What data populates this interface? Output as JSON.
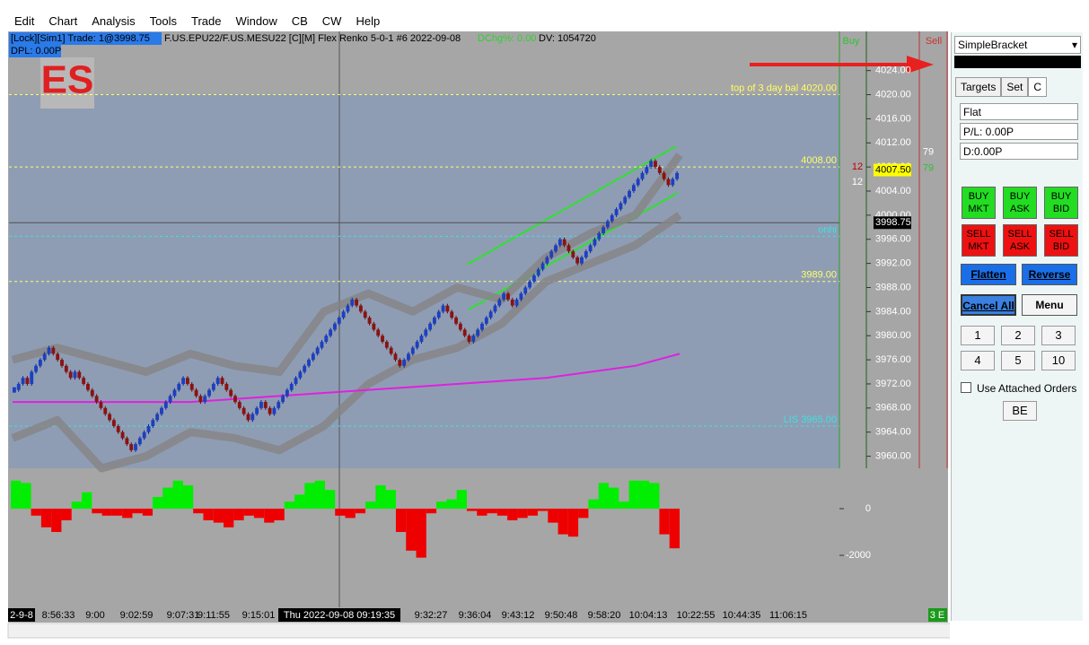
{
  "menu": [
    "Edit",
    "Chart",
    "Analysis",
    "Tools",
    "Trade",
    "Window",
    "CB",
    "CW",
    "Help"
  ],
  "chart": {
    "symbol_label": "ES",
    "info": {
      "account": "[Lock][Sim1]  Trade: 1@3998.75",
      "instrument": "F.US.EPU22/F.US.MESU22 [C][M]  Flex Renko 5-0-1  #6 2022-09-08",
      "change": "DChg%: 0.00",
      "volume": "DV: 1054720",
      "dpl": "DPL: 0.00P"
    },
    "buy_label": "Buy",
    "sell_label": "Sell",
    "ylim": [
      3958,
      4030.5
    ],
    "yticks": [
      {
        "value": 4024,
        "label": "4024.00"
      },
      {
        "value": 4020,
        "label": "4020.00"
      },
      {
        "value": 4016,
        "label": "4016.00"
      },
      {
        "value": 4012,
        "label": "4012.00"
      },
      {
        "value": 4008,
        "label": "4008.00"
      },
      {
        "value": 4004,
        "label": "4004.00"
      },
      {
        "value": 4000,
        "label": "4000.00"
      },
      {
        "value": 3996,
        "label": "3996.00"
      },
      {
        "value": 3992,
        "label": "3992.00"
      },
      {
        "value": 3988,
        "label": "3988.00"
      },
      {
        "value": 3984,
        "label": "3984.00"
      },
      {
        "value": 3980,
        "label": "3980.00"
      },
      {
        "value": 3976,
        "label": "3976.00"
      },
      {
        "value": 3972,
        "label": "3972.00"
      },
      {
        "value": 3968,
        "label": "3968.00"
      },
      {
        "value": 3964,
        "label": "3964.00"
      },
      {
        "value": 3960,
        "label": "3960.00"
      }
    ],
    "last_price": {
      "value": 4007.5,
      "label": "4007.50"
    },
    "trade_price": {
      "value": 3998.75,
      "label": "3998.75"
    },
    "levels": [
      {
        "label": "top of 3 day bal  4020.00",
        "value": 4020,
        "color": "#ffff66"
      },
      {
        "label": "4008.00",
        "value": 4008,
        "color": "#ffff66"
      },
      {
        "label": "onhi",
        "value": 3996.5,
        "color": "#40e0e0"
      },
      {
        "label": "3989.00",
        "value": 3989,
        "color": "#ffff66"
      },
      {
        "label": "LIS  3965.00",
        "value": 3965,
        "color": "#40e0e0"
      }
    ],
    "bricks": [
      3971,
      3972,
      3973,
      3972,
      3974,
      3975,
      3976,
      3977,
      3978,
      3977,
      3976,
      3975,
      3974,
      3973,
      3974,
      3973,
      3972,
      3971,
      3970,
      3969,
      3968,
      3967,
      3966,
      3965,
      3964,
      3963,
      3962,
      3961,
      3962,
      3963,
      3964,
      3965,
      3966,
      3967,
      3968,
      3969,
      3970,
      3971,
      3972,
      3973,
      3972,
      3971,
      3970,
      3969,
      3970,
      3971,
      3972,
      3973,
      3972,
      3971,
      3970,
      3969,
      3968,
      3967,
      3966,
      3967,
      3968,
      3969,
      3968,
      3967,
      3968,
      3969,
      3970,
      3971,
      3972,
      3973,
      3974,
      3975,
      3976,
      3977,
      3978,
      3979,
      3980,
      3981,
      3982,
      3983,
      3984,
      3985,
      3986,
      3985,
      3984,
      3983,
      3982,
      3981,
      3980,
      3979,
      3978,
      3977,
      3976,
      3975,
      3976,
      3977,
      3978,
      3979,
      3980,
      3981,
      3982,
      3983,
      3984,
      3985,
      3984,
      3983,
      3982,
      3981,
      3980,
      3979,
      3980,
      3981,
      3982,
      3983,
      3984,
      3985,
      3986,
      3987,
      3986,
      3985,
      3986,
      3987,
      3988,
      3989,
      3990,
      3991,
      3992,
      3993,
      3994,
      3995,
      3996,
      3995,
      3994,
      3993,
      3992,
      3993,
      3994,
      3995,
      3996,
      3997,
      3998,
      3999,
      4000,
      4001,
      4002,
      4003,
      4004,
      4005,
      4006,
      4007,
      4008,
      4009,
      4008,
      4007,
      4006,
      4005,
      4006,
      4007
    ],
    "bands": {
      "upper": [
        3976,
        3978,
        3976,
        3974,
        3977,
        3975,
        3974,
        3984,
        3987,
        3984,
        3988,
        3986,
        3993,
        3997,
        4000,
        4010
      ],
      "lower": [
        3963,
        3966,
        3958,
        3960,
        3964,
        3963,
        3961,
        3965,
        3972,
        3976,
        3978,
        3982,
        3989,
        3992,
        3995,
        4000
      ],
      "ma": [
        3969,
        3969,
        3969,
        3969,
        3969,
        3969.5,
        3970,
        3970.5,
        3971,
        3971.5,
        3972,
        3972.5,
        3973,
        3974,
        3975,
        3977
      ]
    },
    "bid_counts": [
      {
        "price": 4008,
        "count": 12,
        "color": "#c00000"
      },
      {
        "price": 4005.5,
        "count": 12,
        "color": "#ffffff"
      }
    ],
    "ask_counts": [
      {
        "price": 4010.5,
        "count": 79,
        "color": "#ffffff"
      },
      {
        "price": 4007.8,
        "count": 79,
        "color": "#30c030"
      }
    ]
  },
  "histogram": {
    "ylim": [
      -3960,
      1615
    ],
    "yticks": [
      0,
      -2000
    ],
    "values": [
      1200,
      1100,
      -300,
      -800,
      -1000,
      -500,
      300,
      700,
      -200,
      -300,
      -300,
      -400,
      -200,
      -300,
      500,
      900,
      1200,
      1000,
      -200,
      -500,
      -600,
      -800,
      -500,
      -300,
      -400,
      -600,
      -500,
      300,
      600,
      1100,
      1200,
      800,
      -300,
      -400,
      -200,
      300,
      1000,
      800,
      -1000,
      -1800,
      -2100,
      -200,
      300,
      400,
      800,
      -100,
      -300,
      -200,
      -300,
      -500,
      -400,
      -300,
      -100,
      -600,
      -1100,
      -1200,
      -400,
      400,
      1100,
      900,
      300,
      1200,
      1200,
      1100,
      -1100,
      -1700
    ]
  },
  "time_axis": {
    "labels": [
      "2-9-8",
      "8:56:33",
      "9:00",
      "9:02:59",
      "9:07:31",
      "9:11:55",
      "9:15:01",
      "Thu 2022-09-08  09:19:35",
      "9:32:27",
      "9:36:04",
      "9:43:12",
      "9:50:48",
      "9:58:20",
      "10:04:13",
      "10:22:55",
      "10:44:35",
      "11:06:15"
    ],
    "end_label": "3 E"
  },
  "panel": {
    "strategy": "SimpleBracket",
    "tabs": [
      "Targets",
      "Set",
      "C"
    ],
    "fields": [
      "Flat",
      "P/L: 0.00P",
      "D:0.00P"
    ],
    "buy_buttons": [
      [
        "BUY",
        "MKT"
      ],
      [
        "BUY",
        "ASK"
      ],
      [
        "BUY",
        "BID"
      ]
    ],
    "sell_buttons": [
      [
        "SELL",
        "MKT"
      ],
      [
        "SELL",
        "ASK"
      ],
      [
        "SELL",
        "BID"
      ]
    ],
    "flatten": "Flatten",
    "reverse": "Reverse",
    "cancel_all": "Cancel All",
    "menu": "Menu",
    "quantities": [
      1,
      2,
      3,
      4,
      5,
      10
    ],
    "attached_orders": "Use Attached Orders",
    "be": "BE"
  }
}
